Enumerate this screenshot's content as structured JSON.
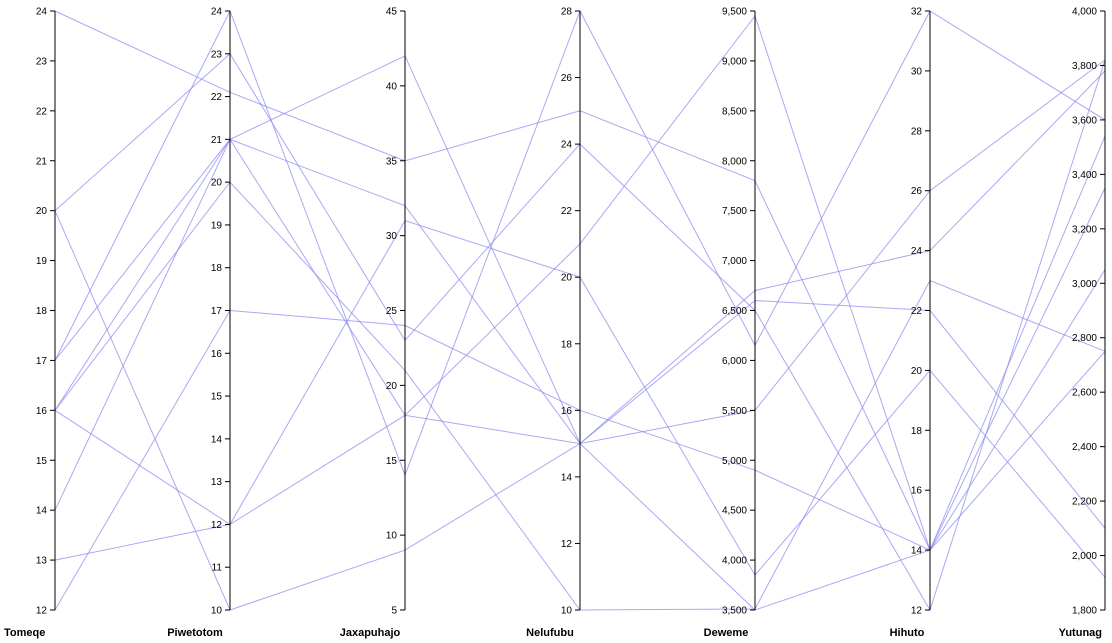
{
  "chart_data": {
    "type": "parallel-coordinates",
    "line_color": "#8c8cf0",
    "axes": [
      {
        "name": "Tomeqe",
        "min": 12,
        "max": 24,
        "ticks": [
          "12",
          "13",
          "14",
          "15",
          "16",
          "17",
          "18",
          "19",
          "20",
          "21",
          "22",
          "23",
          "24"
        ]
      },
      {
        "name": "Piwetotom",
        "min": 10,
        "max": 24,
        "ticks": [
          "10",
          "11",
          "12",
          "13",
          "14",
          "15",
          "16",
          "17",
          "18",
          "19",
          "20",
          "21",
          "22",
          "23",
          "24"
        ]
      },
      {
        "name": "Jaxapuhajo",
        "min": 5,
        "max": 45,
        "ticks": [
          "5",
          "10",
          "15",
          "20",
          "25",
          "30",
          "35",
          "40",
          "45"
        ]
      },
      {
        "name": "Nelufubu",
        "min": 10,
        "max": 28,
        "ticks": [
          "10",
          "12",
          "14",
          "16",
          "18",
          "20",
          "22",
          "24",
          "26",
          "28"
        ]
      },
      {
        "name": "Deweme",
        "min": 3500,
        "max": 9500,
        "ticks": [
          "3,500",
          "4,000",
          "4,500",
          "5,000",
          "5,500",
          "6,000",
          "6,500",
          "7,000",
          "7,500",
          "8,000",
          "8,500",
          "9,000",
          "9,500"
        ]
      },
      {
        "name": "Hihuto",
        "min": 12,
        "max": 32,
        "ticks": [
          "12",
          "14",
          "16",
          "18",
          "20",
          "22",
          "24",
          "26",
          "28",
          "30",
          "32"
        ]
      },
      {
        "name": "Yutunag",
        "min": 1800,
        "max": 4000,
        "ticks": [
          "1,800",
          "2,000",
          "2,200",
          "2,400",
          "2,600",
          "2,800",
          "3,000",
          "3,200",
          "3,400",
          "3,600",
          "3,800",
          "4,000"
        ]
      }
    ],
    "rows": [
      [
        24,
        22.1,
        35,
        25,
        7800,
        14,
        3540
      ],
      [
        20,
        23,
        23,
        24,
        6500,
        12,
        3820
      ],
      [
        17,
        24,
        14,
        28,
        6150,
        32,
        3600
      ],
      [
        17,
        21,
        32,
        15,
        5500,
        26,
        3820
      ],
      [
        16,
        21,
        42,
        15,
        3500,
        14,
        3350
      ],
      [
        16,
        20,
        21,
        10,
        3510,
        23,
        2750
      ],
      [
        14,
        21,
        18,
        21,
        9450,
        14,
        3050
      ],
      [
        13,
        12,
        18,
        15,
        6700,
        24,
        3780
      ],
      [
        20,
        10,
        9,
        15,
        6600,
        22,
        2100
      ],
      [
        12,
        17,
        24,
        16,
        4900,
        14,
        2750
      ],
      [
        16,
        12,
        31,
        20,
        3850,
        20,
        1920
      ]
    ]
  }
}
